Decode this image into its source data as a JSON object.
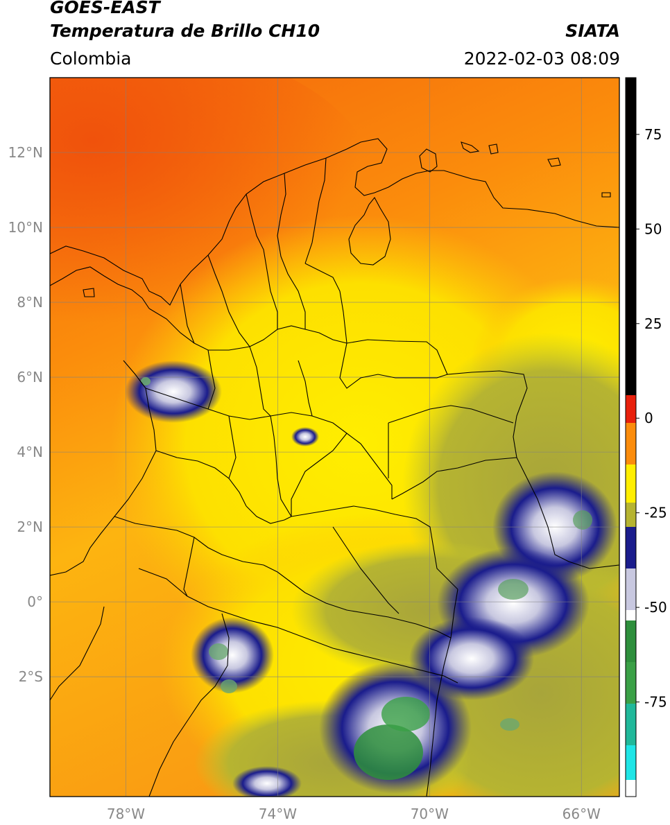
{
  "header": {
    "satellite": "GOES-EAST",
    "product": "Temperatura de Brillo CH10",
    "region": "Colombia",
    "brand": "SIATA",
    "datetime": "2022-02-03 08:09"
  },
  "map": {
    "lon_range": [
      -80,
      -65
    ],
    "lat_range": [
      -5.2,
      14
    ],
    "lat_ticks": [
      {
        "value": 12,
        "label": "12°N"
      },
      {
        "value": 10,
        "label": "10°N"
      },
      {
        "value": 8,
        "label": "8°N"
      },
      {
        "value": 6,
        "label": "6°N"
      },
      {
        "value": 4,
        "label": "4°N"
      },
      {
        "value": 2,
        "label": "2°N"
      },
      {
        "value": 0,
        "label": "0°"
      },
      {
        "value": -2,
        "label": "2°S"
      }
    ],
    "lon_ticks": [
      {
        "value": -78,
        "label": "78°W"
      },
      {
        "value": -74,
        "label": "74°W"
      },
      {
        "value": -70,
        "label": "70°W"
      },
      {
        "value": -66,
        "label": "66°W"
      }
    ],
    "gridlines": true
  },
  "colorbar": {
    "range": [
      -100,
      90
    ],
    "ticks": [
      {
        "value": 75,
        "label": "75"
      },
      {
        "value": 50,
        "label": "50"
      },
      {
        "value": 25,
        "label": "25"
      },
      {
        "value": 0,
        "label": "0"
      },
      {
        "value": -25,
        "label": "-25"
      },
      {
        "value": -50,
        "label": "-50"
      },
      {
        "value": -75,
        "label": "-75"
      }
    ],
    "colors": {
      "black": "#000000",
      "red": "#e8200c",
      "orange": "#fb8c0c",
      "yellow": "#ffee00",
      "olive": "#b6b431",
      "navy": "#1a1c8c",
      "white": "#ffffff",
      "green": "#2e8f3c",
      "teal": "#20b89a",
      "cyan": "#1fe5e6"
    }
  }
}
